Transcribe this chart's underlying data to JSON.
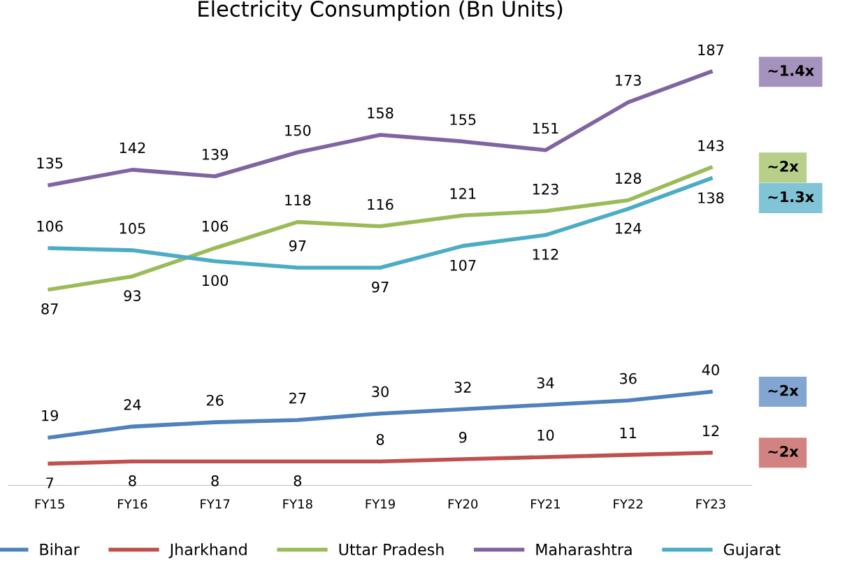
{
  "chart_data": {
    "type": "line",
    "title": "Electricity Consumption (Bn Units)",
    "categories": [
      "FY15",
      "FY16",
      "FY17",
      "FY18",
      "FY19",
      "FY20",
      "FY21",
      "FY22",
      "FY23"
    ],
    "series": [
      {
        "name": "Bihar",
        "color": "#4f81bd",
        "values": [
          19,
          24,
          26,
          27,
          30,
          32,
          34,
          36,
          40
        ]
      },
      {
        "name": "Jharkhand",
        "color": "#c0504d",
        "values": [
          7,
          8,
          8,
          8,
          8,
          9,
          10,
          11,
          12
        ]
      },
      {
        "name": "Uttar Pradesh",
        "color": "#9bbb59",
        "values": [
          87,
          93,
          106,
          118,
          116,
          121,
          123,
          128,
          143
        ]
      },
      {
        "name": "Maharashtra",
        "color": "#8064a2",
        "values": [
          135,
          142,
          139,
          150,
          158,
          155,
          151,
          173,
          187
        ]
      },
      {
        "name": "Gujarat",
        "color": "#4bacc6",
        "values": [
          106,
          105,
          100,
          97,
          97,
          107,
          112,
          124,
          138
        ]
      }
    ],
    "data_labels": true,
    "legend": "bottom",
    "grid": false,
    "marker": "none",
    "line_style": "solid",
    "annotations": [
      "~1.4x",
      "~2x",
      "~1.3x",
      "~2x",
      "~2x"
    ]
  }
}
